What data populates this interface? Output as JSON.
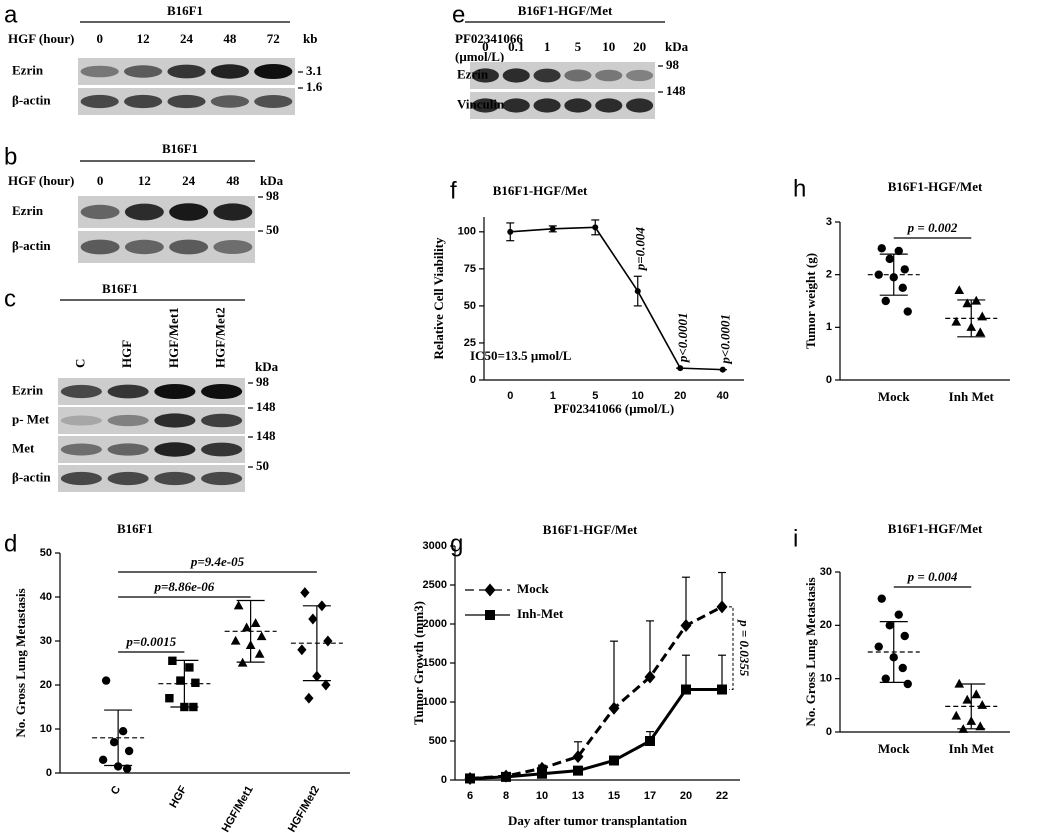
{
  "blots": [
    {
      "letter": "a",
      "title": "B16F1",
      "treatment": [
        "HGF (hour)"
      ],
      "lanes": [
        "0",
        "12",
        "24",
        "48",
        "72"
      ],
      "unit": "kb",
      "rows": [
        "Ezrin",
        "β-actin"
      ],
      "markers": [
        "3.1",
        "1.6"
      ]
    },
    {
      "letter": "b",
      "title": "B16F1",
      "treatment": [
        "HGF (hour)"
      ],
      "lanes": [
        "0",
        "12",
        "24",
        "48"
      ],
      "unit": "kDa",
      "rows": [
        "Ezrin",
        "β-actin"
      ],
      "markers": [
        "98",
        "50"
      ]
    },
    {
      "letter": "c",
      "title": "B16F1",
      "lanes": [
        "C",
        "HGF",
        "HGF/Met1",
        "HGF/Met2"
      ],
      "unit": "kDa",
      "rows": [
        "Ezrin",
        "p- Met",
        "Met",
        "β-actin"
      ],
      "markers": [
        "98",
        "148",
        "148",
        "50"
      ]
    },
    {
      "letter": "e",
      "title": "B16F1-HGF/Met",
      "treatment": [
        "PF02341066",
        "(μmol/L)"
      ],
      "lanes": [
        "0",
        "0.1",
        "1",
        "5",
        "10",
        "20"
      ],
      "unit": "kDa",
      "rows": [
        "Ezrin",
        "Vinculin"
      ],
      "markers": [
        "98",
        "148"
      ]
    }
  ],
  "chart_data": [
    {
      "letter": "d",
      "type": "strip",
      "title": "B16F1",
      "y_label": "No. Gross Lung Metastasis",
      "categories": [
        "C",
        "HGF",
        "HGF/Met1",
        "HGF/Met2"
      ],
      "markers": [
        "circle",
        "square",
        "triangle",
        "diamond"
      ],
      "points": [
        [
          21,
          9.5,
          7,
          5,
          3,
          1.5,
          1
        ],
        [
          25.5,
          24,
          21,
          20.5,
          17,
          15,
          15
        ],
        [
          38,
          34,
          33,
          31,
          30,
          29,
          27,
          25
        ],
        [
          41,
          38,
          35,
          30,
          28,
          22,
          20,
          17
        ]
      ],
      "means": [
        8,
        20.3,
        32.2,
        29.5
      ],
      "sds": [
        6.3,
        5.3,
        7,
        8.5
      ],
      "ylim": [
        0,
        50
      ],
      "yticks": [
        0,
        10,
        20,
        30,
        40,
        50
      ],
      "comparisons": [
        {
          "label": "p=0.0015",
          "between": [
            "C",
            "HGF"
          ]
        },
        {
          "label": "p=8.86e-06",
          "between": [
            "C",
            "HGF/Met1"
          ]
        },
        {
          "label": "p=9.4e-05",
          "between": [
            "C",
            "HGF/Met2"
          ]
        }
      ]
    },
    {
      "letter": "f",
      "type": "line",
      "title": "B16F1-HGF/Met",
      "y_label": "Relative Cell Viability",
      "x_label": "PF02341066 (μmol/L)",
      "categories": [
        "0",
        "1",
        "5",
        "10",
        "20",
        "40"
      ],
      "values": [
        100,
        102,
        103,
        60,
        8,
        7
      ],
      "errors": [
        6,
        2,
        5,
        10,
        0,
        0
      ],
      "error_bars": "both",
      "marker": "circle",
      "color": "#000000",
      "point_notes": [
        null,
        null,
        null,
        "p=0.004",
        "p<0.0001",
        "p<0.0001"
      ],
      "annotation": "IC50=13.5 μmol/L",
      "ylim": [
        0,
        110
      ],
      "yticks": [
        0,
        25,
        50,
        75,
        100
      ]
    },
    {
      "letter": "g",
      "type": "line",
      "title": "B16F1-HGF/Met",
      "y_label": "Tumor Growth (mm3)",
      "x_label": "Day after tumor transplantation",
      "categories": [
        "6",
        "8",
        "10",
        "13",
        "15",
        "17",
        "20",
        "22"
      ],
      "series": [
        {
          "name": "Mock",
          "color": "#000000",
          "marker": "diamond",
          "line_style": "dashed",
          "values": [
            20,
            50,
            150,
            300,
            920,
            1320,
            1980,
            2220
          ],
          "errors": [
            10,
            20,
            40,
            190,
            860,
            720,
            620,
            440
          ]
        },
        {
          "name": "Inh-Met",
          "color": "#000000",
          "marker": "square",
          "line_style": "solid",
          "values": [
            20,
            40,
            80,
            120,
            250,
            500,
            1160,
            1160
          ],
          "errors": [
            10,
            15,
            30,
            50,
            50,
            120,
            440,
            440
          ]
        }
      ],
      "error_bars": "up",
      "annotation": "p = 0.0355",
      "legend": "upper left",
      "ylim": [
        0,
        3000
      ],
      "yticks": [
        0,
        500,
        1000,
        1500,
        2000,
        2500,
        3000
      ]
    },
    {
      "letter": "h",
      "type": "strip",
      "title": "B16F1-HGF/Met",
      "y_label": "Tumor weight (g)",
      "categories": [
        "Mock",
        "Inh Met"
      ],
      "markers": [
        "circle",
        "triangle"
      ],
      "points": [
        [
          2.5,
          2.45,
          2.3,
          2.1,
          2.0,
          1.95,
          1.75,
          1.5,
          1.3
        ],
        [
          1.7,
          1.5,
          1.45,
          1.2,
          1.1,
          1.0,
          0.9
        ]
      ],
      "means": [
        2.0,
        1.17
      ],
      "sds": [
        0.39,
        0.35
      ],
      "ylim": [
        0,
        3
      ],
      "yticks": [
        0,
        1,
        2,
        3
      ],
      "comparisons": [
        {
          "label": "p = 0.002",
          "between": [
            "Mock",
            "Inh Met"
          ]
        }
      ]
    },
    {
      "letter": "i",
      "type": "strip",
      "title": "B16F1-HGF/Met",
      "y_label": "No. Gross Lung Metastasis",
      "categories": [
        "Mock",
        "Inh Met"
      ],
      "markers": [
        "circle",
        "triangle"
      ],
      "points": [
        [
          25,
          22,
          20,
          18,
          16,
          14,
          12,
          10,
          9
        ],
        [
          9,
          7,
          6,
          5,
          3,
          2,
          1,
          0.5
        ]
      ],
      "means": [
        15,
        4.8
      ],
      "sds": [
        5.7,
        4.2
      ],
      "ylim": [
        0,
        30
      ],
      "yticks": [
        0,
        10,
        20,
        30
      ],
      "comparisons": [
        {
          "label": "p = 0.004",
          "between": [
            "Mock",
            "Inh Met"
          ]
        }
      ]
    }
  ]
}
